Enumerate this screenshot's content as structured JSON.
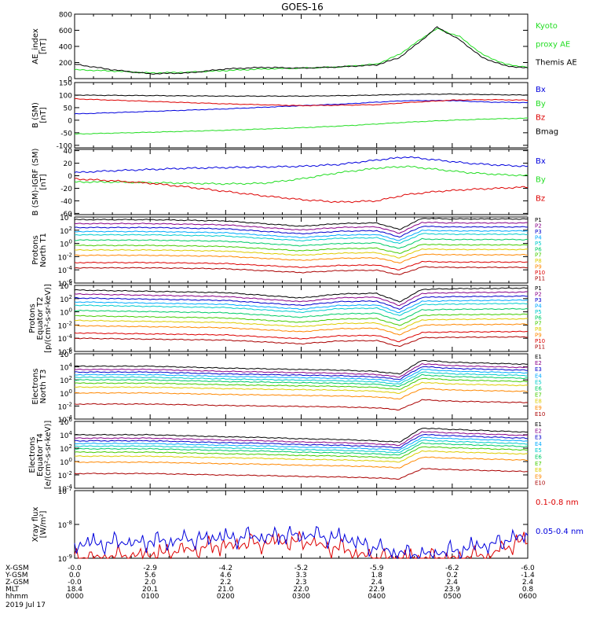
{
  "title": "GOES-16",
  "colors": {
    "black": "#000000",
    "green": "#22dd22",
    "red": "#dd0000",
    "blue": "#0000dd",
    "p_series": [
      "#000000",
      "#880088",
      "#0000cc",
      "#00aaff",
      "#00cccc",
      "#00cc66",
      "#44cc00",
      "#ddcc00",
      "#ff8800",
      "#dd0000",
      "#aa0000"
    ],
    "e_series": [
      "#000000",
      "#880088",
      "#0000cc",
      "#00aaff",
      "#00cccc",
      "#00cc66",
      "#44cc00",
      "#ddcc00",
      "#ff8800",
      "#aa0000"
    ]
  },
  "axis_rows": [
    {
      "label": "X-GSM",
      "values": [
        "-0.0",
        "-2.9",
        "-4.2",
        "-5.2",
        "-5.9",
        "-6.2",
        "-6.0"
      ]
    },
    {
      "label": "Y-GSM",
      "values": [
        "0.0",
        "5.6",
        "4.6",
        "3.3",
        "1.8",
        "0.2",
        "-1.4"
      ]
    },
    {
      "label": "Z-GSM",
      "values": [
        "-0.0",
        "2.0",
        "2.2",
        "2.3",
        "2.4",
        "2.4",
        "2.4"
      ]
    },
    {
      "label": "MLT",
      "values": [
        "18.4",
        "20.1",
        "21.0",
        "22.0",
        "22.9",
        "23.9",
        "0.8"
      ]
    },
    {
      "label": "hhmm",
      "values": [
        "0000",
        "0100",
        "0200",
        "0300",
        "0400",
        "0500",
        "0600"
      ]
    }
  ],
  "date_label": "2019 Jul 17",
  "chart_data": [
    {
      "type": "line",
      "id": "ae",
      "ylabel_lines": [
        "AE_index",
        "[nT]"
      ],
      "ylim": [
        0,
        800
      ],
      "yticks": [
        "0",
        "200",
        "400",
        "600",
        "800"
      ],
      "x": [
        0,
        0.5,
        1,
        1.5,
        2,
        2.5,
        3,
        3.5,
        4,
        4.3,
        4.6,
        4.8,
        5.1,
        5.4,
        5.7,
        6.0
      ],
      "series": [
        {
          "name": "Kyoto proxy AE",
          "color_key": "green",
          "values": [
            110,
            95,
            70,
            80,
            100,
            120,
            130,
            145,
            180,
            300,
            500,
            620,
            520,
            300,
            180,
            140
          ]
        },
        {
          "name": "Themis AE",
          "color_key": "black",
          "values": [
            180,
            110,
            60,
            70,
            120,
            140,
            130,
            145,
            170,
            260,
            480,
            640,
            480,
            260,
            160,
            130
          ]
        }
      ],
      "legend": [
        {
          "text": "Kyoto",
          "color_key": "green"
        },
        {
          "text": "proxy AE",
          "color_key": "green"
        },
        {
          "text": "Themis AE",
          "color_key": "black"
        }
      ]
    },
    {
      "type": "line",
      "id": "bsm",
      "ylabel_lines": [
        "B (SM)",
        "[nT]"
      ],
      "ylim": [
        -110,
        150
      ],
      "yticks": [
        "-100",
        "-50",
        "0",
        "50",
        "100",
        "150"
      ],
      "x": [
        0,
        1,
        2,
        3,
        3.6,
        4,
        4.4,
        5,
        5.5,
        6
      ],
      "series": [
        {
          "name": "Bx",
          "color_key": "blue",
          "values": [
            25,
            35,
            45,
            58,
            65,
            72,
            78,
            78,
            72,
            70
          ]
        },
        {
          "name": "By",
          "color_key": "green",
          "values": [
            -55,
            -48,
            -40,
            -30,
            -22,
            -15,
            -8,
            0,
            5,
            8
          ]
        },
        {
          "name": "Bz",
          "color_key": "red",
          "values": [
            85,
            75,
            65,
            58,
            60,
            62,
            70,
            80,
            82,
            80
          ]
        },
        {
          "name": "Bmag",
          "color_key": "black",
          "values": [
            100,
            98,
            96,
            96,
            98,
            100,
            103,
            104,
            102,
            100
          ]
        }
      ],
      "legend": [
        {
          "text": "Bx",
          "color_key": "blue"
        },
        {
          "text": "By",
          "color_key": "green"
        },
        {
          "text": "Bz",
          "color_key": "red"
        },
        {
          "text": "Bmag",
          "color_key": "black"
        }
      ]
    },
    {
      "type": "line",
      "id": "bdiff",
      "ylabel_lines": [
        "B (SM)-IGRF (SM)",
        "[nT]"
      ],
      "ylim": [
        -62,
        42
      ],
      "yticks": [
        "-60",
        "-40",
        "-20",
        "0",
        "20",
        "40"
      ],
      "x": [
        0,
        0.5,
        1,
        1.5,
        2,
        2.5,
        3,
        3.5,
        4,
        4.4,
        4.8,
        5.2,
        5.6,
        6
      ],
      "series": [
        {
          "name": "Bx",
          "color_key": "blue",
          "values": [
            5,
            8,
            10,
            12,
            13,
            14,
            15,
            18,
            25,
            30,
            25,
            20,
            17,
            15
          ]
        },
        {
          "name": "By",
          "color_key": "green",
          "values": [
            -10,
            -10,
            -11,
            -12,
            -13,
            -12,
            -5,
            5,
            12,
            15,
            10,
            5,
            2,
            0
          ]
        },
        {
          "name": "Bz",
          "color_key": "red",
          "values": [
            -5,
            -8,
            -12,
            -18,
            -25,
            -32,
            -38,
            -42,
            -40,
            -30,
            -25,
            -22,
            -20,
            -18
          ]
        }
      ],
      "legend": [
        {
          "text": "Bx",
          "color_key": "blue"
        },
        {
          "text": "By",
          "color_key": "green"
        },
        {
          "text": "Bz",
          "color_key": "red"
        }
      ]
    },
    {
      "type": "line",
      "id": "pt1",
      "scale": "log",
      "ylabel_lines": [
        "Protons",
        "North T1"
      ],
      "ylim_exp": [
        -6,
        4
      ],
      "yticks": [
        {
          "base": "10",
          "exp": "4"
        },
        {
          "base": "10",
          "exp": "2"
        },
        {
          "base": "10",
          "exp": "0"
        },
        {
          "base": "10",
          "exp": "-2"
        },
        {
          "base": "10",
          "exp": "-4"
        },
        {
          "base": "10",
          "exp": "-6"
        }
      ],
      "x": [
        0,
        1,
        2,
        2.5,
        3,
        3.5,
        4,
        4.3,
        4.6,
        5,
        6
      ],
      "base_log": [
        3.6,
        3.0,
        2.4,
        1.8,
        1.3,
        0.5,
        -0.3,
        -1.0,
        -1.8,
        -2.9,
        -3.7
      ],
      "shape_log": [
        0,
        0,
        -0.2,
        -0.6,
        -1.0,
        -0.6,
        -0.5,
        -1.5,
        0.2,
        0.1,
        0.1
      ],
      "legend": [
        "P1",
        "P2",
        "P3",
        "P4",
        "P5",
        "P6",
        "P7",
        "P8",
        "P9",
        "P10",
        "P11"
      ]
    },
    {
      "type": "line",
      "id": "pt2",
      "scale": "log",
      "ylabel_lines": [
        "Protons",
        "Equator T2",
        "[p/(cm²-s-sr-keV)]"
      ],
      "ylim_exp": [
        -6,
        4
      ],
      "yticks": [
        {
          "base": "10",
          "exp": "4"
        },
        {
          "base": "10",
          "exp": "2"
        },
        {
          "base": "10",
          "exp": "0"
        },
        {
          "base": "10",
          "exp": "-2"
        },
        {
          "base": "10",
          "exp": "-4"
        },
        {
          "base": "10",
          "exp": "-6"
        }
      ],
      "x": [
        0,
        1,
        2,
        2.5,
        3,
        3.5,
        4,
        4.3,
        4.6,
        5,
        6
      ],
      "base_log": [
        3.3,
        2.7,
        2.1,
        1.5,
        1.0,
        0.2,
        -0.6,
        -1.3,
        -2.1,
        -3.2,
        -4.0
      ],
      "shape_log": [
        0,
        -0.2,
        -0.4,
        -0.8,
        -1.2,
        -0.6,
        -0.5,
        -1.8,
        0.1,
        0.2,
        0.3
      ],
      "legend": [
        "P1",
        "P2",
        "P3",
        "P4",
        "P5",
        "P6",
        "P7",
        "P8",
        "P9",
        "P10",
        "P11"
      ]
    },
    {
      "type": "line",
      "id": "et3",
      "scale": "log",
      "ylabel_lines": [
        "Electrons",
        "North T3"
      ],
      "ylim_exp": [
        -4,
        6
      ],
      "yticks": [
        {
          "base": "10",
          "exp": "6"
        },
        {
          "base": "10",
          "exp": "4"
        },
        {
          "base": "10",
          "exp": "2"
        },
        {
          "base": "10",
          "exp": "0"
        },
        {
          "base": "10",
          "exp": "-2"
        },
        {
          "base": "10",
          "exp": "-4"
        }
      ],
      "x": [
        0,
        1,
        2,
        2.5,
        3,
        3.5,
        4,
        4.3,
        4.6,
        5,
        6
      ],
      "base_log": [
        4.1,
        3.6,
        3.2,
        2.8,
        2.4,
        2.0,
        1.5,
        0.9,
        0.0,
        -1.7
      ],
      "shape_log": [
        0,
        0,
        -0.3,
        -0.4,
        -0.5,
        -0.6,
        -0.8,
        -1.2,
        0.9,
        0.6,
        0.3
      ],
      "legend": [
        "E1",
        "E2",
        "E3",
        "E4",
        "E5",
        "E6",
        "E7",
        "E8",
        "E9",
        "E10"
      ]
    },
    {
      "type": "line",
      "id": "et4",
      "scale": "log",
      "ylabel_lines": [
        "Electrons",
        "Equator T4",
        "[e/(cm²-s-sr-keV)]"
      ],
      "ylim_exp": [
        -4,
        6
      ],
      "yticks": [
        {
          "base": "10",
          "exp": "6"
        },
        {
          "base": "10",
          "exp": "4"
        },
        {
          "base": "10",
          "exp": "2"
        },
        {
          "base": "10",
          "exp": "0"
        },
        {
          "base": "10",
          "exp": "-2"
        },
        {
          "base": "10",
          "exp": "-4"
        }
      ],
      "x": [
        0,
        1,
        2,
        2.5,
        3,
        3.5,
        4,
        4.3,
        4.6,
        5,
        6
      ],
      "base_log": [
        4.0,
        3.5,
        3.1,
        2.7,
        2.3,
        1.9,
        1.4,
        0.8,
        -0.1,
        -1.8
      ],
      "shape_log": [
        0,
        0,
        -0.3,
        -0.4,
        -0.6,
        -0.7,
        -0.9,
        -1.1,
        1.0,
        0.8,
        0.4
      ],
      "legend": [
        "E1",
        "E2",
        "E3",
        "E4",
        "E5",
        "E6",
        "E7",
        "E8",
        "E9",
        "E10"
      ]
    },
    {
      "type": "line",
      "id": "xray",
      "scale": "log",
      "ylabel_lines": [
        "Xray flux",
        "[W/m²]"
      ],
      "ylim_exp": [
        -9,
        -7
      ],
      "yticks": [
        {
          "base": "10",
          "exp": "-7"
        },
        {
          "base": "10",
          "exp": "-8"
        },
        {
          "base": "10",
          "exp": "-9"
        }
      ],
      "x": [
        0,
        1,
        2,
        3,
        3.5,
        4,
        4.5,
        5,
        5.5,
        6
      ],
      "series": [
        {
          "name": "0.1-0.8 nm",
          "color_key": "red",
          "values_log": [
            -9.0,
            -8.9,
            -8.6,
            -8.5,
            -8.7,
            -9.0,
            -9.0,
            -9.0,
            -8.9,
            -8.4
          ]
        },
        {
          "name": "0.05-0.4 nm",
          "color_key": "blue",
          "values_log": [
            -8.6,
            -8.5,
            -8.4,
            -8.3,
            -8.4,
            -8.7,
            -8.9,
            -8.8,
            -8.6,
            -8.3
          ]
        }
      ],
      "legend": [
        {
          "text": "0.1-0.8 nm",
          "color_key": "red"
        },
        {
          "text": "0.05-0.4 nm",
          "color_key": "blue"
        }
      ]
    }
  ]
}
